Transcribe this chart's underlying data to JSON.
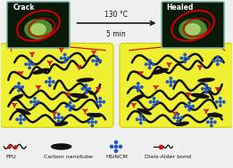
{
  "bg_color": "#f0f0f0",
  "yellow_box_color": "#f0f032",
  "arrow_color": "#1a1a1a",
  "arrow_label_temp": "130 °C",
  "arrow_label_time": "5 min",
  "crack_label": "Crack",
  "healed_label": "Healed",
  "legend_labels": [
    "FPU",
    "Carbon nanotube",
    "HSiNCM",
    "Diels-Alder bond"
  ],
  "nanotube_color": "#111111",
  "blue_cross_color": "#2255cc",
  "red_y_color": "#cc1111",
  "polymer_line_color": "#111111",
  "photo_border_color": "#88bbaa",
  "photo_bg_color": "#0a1a0a",
  "photo_glow_color": "#88cc44",
  "red_line_color": "#cc0000"
}
